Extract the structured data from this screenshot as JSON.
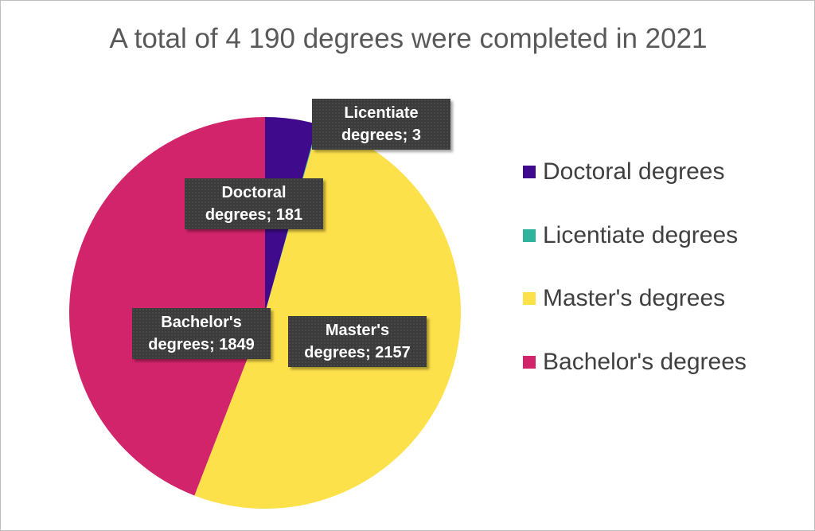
{
  "chart_data": {
    "type": "pie",
    "title": "A total of 4 190 degrees were completed in 2021",
    "categories": [
      "Doctoral degrees",
      "Licentiate degrees",
      "Master's degrees",
      "Bachelor's degrees"
    ],
    "values": [
      181,
      3,
      2157,
      1849
    ],
    "value_labels": [
      "Doctoral degrees; 181",
      "Licentiate degrees; 3",
      "Master's degrees; 2157",
      "Bachelor's degrees; 1849"
    ],
    "colors": [
      "#3f0a8c",
      "#2fb39b",
      "#fde14a",
      "#d2246a"
    ],
    "legend": "right"
  }
}
